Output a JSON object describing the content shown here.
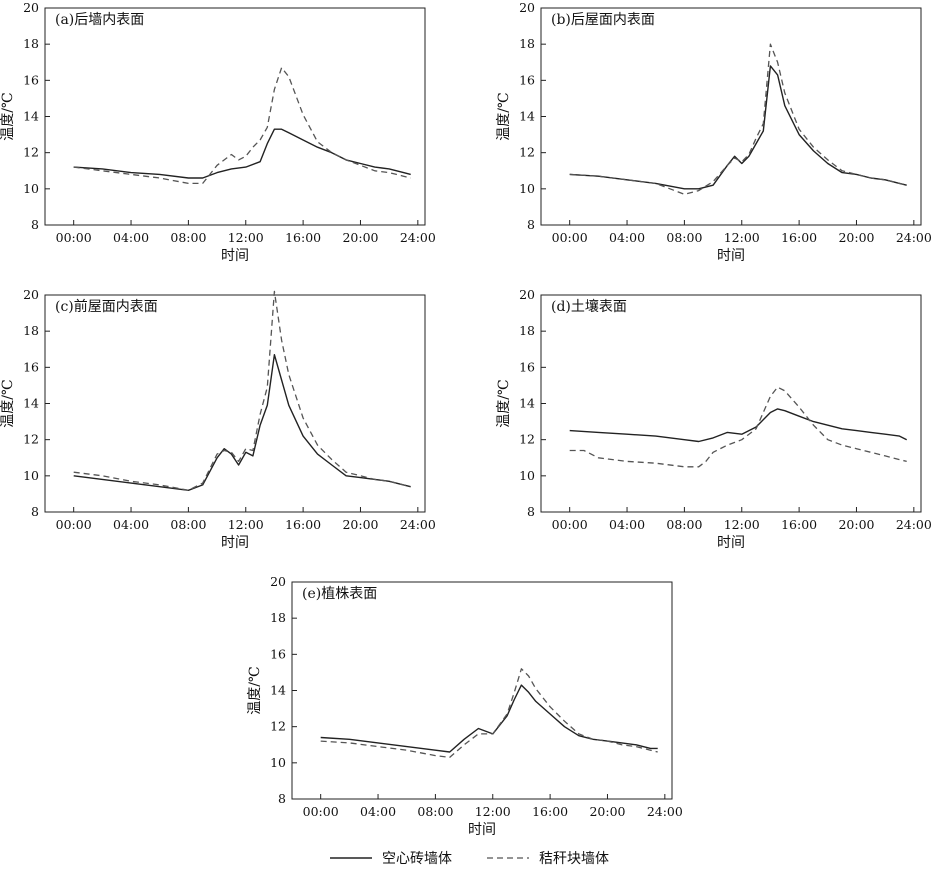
{
  "legend": {
    "solid_label": "空心砖墙体",
    "dashed_label": "秸秆块墙体"
  },
  "chart_data": [
    {
      "type": "line",
      "title": "(a)后墙内表面",
      "xlabel": "时间",
      "ylabel": "温度/℃",
      "x_ticks": [
        "00:00",
        "04:00",
        "08:00",
        "12:00",
        "16:00",
        "20:00",
        "24:00"
      ],
      "y_ticks": [
        "8",
        "10",
        "12",
        "14",
        "16",
        "18",
        "20"
      ],
      "xlim": [
        -2,
        24.5
      ],
      "ylim": [
        8,
        20
      ],
      "series": [
        {
          "name": "空心砖墙体",
          "style": "solid",
          "x": [
            0,
            2,
            4,
            6,
            8,
            9,
            10,
            11,
            12,
            13,
            13.5,
            14,
            14.5,
            15,
            16,
            17,
            18,
            19,
            20,
            21,
            22,
            23,
            23.5
          ],
          "y": [
            11.2,
            11.1,
            10.9,
            10.8,
            10.6,
            10.6,
            10.9,
            11.1,
            11.2,
            11.5,
            12.5,
            13.3,
            13.3,
            13.1,
            12.7,
            12.3,
            12,
            11.6,
            11.4,
            11.2,
            11.1,
            10.9,
            10.8
          ]
        },
        {
          "name": "秸秆块墙体",
          "style": "dashed",
          "x": [
            0,
            2,
            4,
            6,
            8,
            9,
            10,
            11,
            11.5,
            12,
            12.5,
            13,
            13.5,
            14,
            14.5,
            15,
            16,
            17,
            18,
            19,
            20,
            21,
            22,
            23,
            23.5
          ],
          "y": [
            11.2,
            11,
            10.8,
            10.6,
            10.3,
            10.3,
            11.3,
            11.9,
            11.6,
            11.8,
            12.3,
            12.7,
            13.4,
            15.5,
            16.7,
            16.2,
            14.1,
            12.6,
            12,
            11.6,
            11.3,
            11,
            10.9,
            10.7,
            10.6
          ]
        }
      ]
    },
    {
      "type": "line",
      "title": "(b)后屋面内表面",
      "xlabel": "时间",
      "ylabel": "温度/℃",
      "x_ticks": [
        "00:00",
        "04:00",
        "08:00",
        "12:00",
        "16:00",
        "20:00",
        "24:00"
      ],
      "y_ticks": [
        "8",
        "10",
        "12",
        "14",
        "16",
        "18",
        "20"
      ],
      "xlim": [
        -2,
        24.5
      ],
      "ylim": [
        8,
        20
      ],
      "series": [
        {
          "name": "空心砖墙体",
          "style": "solid",
          "x": [
            0,
            2,
            4,
            6,
            8,
            9,
            10,
            11,
            11.5,
            12,
            12.5,
            13,
            13.5,
            14,
            14.5,
            15,
            16,
            17,
            18,
            19,
            20,
            21,
            22,
            23,
            23.5
          ],
          "y": [
            10.8,
            10.7,
            10.5,
            10.3,
            10,
            10,
            10.2,
            11.3,
            11.8,
            11.4,
            11.8,
            12.5,
            13.2,
            16.8,
            16.3,
            14.6,
            13,
            12.1,
            11.4,
            10.9,
            10.8,
            10.6,
            10.5,
            10.3,
            10.2
          ]
        },
        {
          "name": "秸秆块墙体",
          "style": "dashed",
          "x": [
            0,
            2,
            4,
            6,
            8,
            9,
            10,
            11,
            11.5,
            12,
            12.5,
            13,
            13.5,
            14,
            14.5,
            15,
            16,
            17,
            18,
            19,
            20,
            21,
            22,
            23,
            23.5
          ],
          "y": [
            10.8,
            10.7,
            10.5,
            10.3,
            9.7,
            9.9,
            10.4,
            11.3,
            11.7,
            11.5,
            11.9,
            12.8,
            13.6,
            18,
            17,
            15.3,
            13.3,
            12.3,
            11.6,
            11,
            10.8,
            10.6,
            10.5,
            10.3,
            10.2
          ]
        }
      ]
    },
    {
      "type": "line",
      "title": "(c)前屋面内表面",
      "xlabel": "时间",
      "ylabel": "温度/℃",
      "x_ticks": [
        "00:00",
        "04:00",
        "08:00",
        "12:00",
        "16:00",
        "20:00",
        "24:00"
      ],
      "y_ticks": [
        "8",
        "10",
        "12",
        "14",
        "16",
        "18",
        "20"
      ],
      "xlim": [
        -2,
        24.5
      ],
      "ylim": [
        8,
        20
      ],
      "series": [
        {
          "name": "空心砖墙体",
          "style": "solid",
          "x": [
            0,
            2,
            4,
            6,
            8,
            9,
            10,
            10.5,
            11,
            11.5,
            12,
            12.5,
            13,
            13.5,
            14,
            14.5,
            15,
            16,
            17,
            18,
            19,
            20,
            21,
            22,
            23,
            23.5
          ],
          "y": [
            10,
            9.8,
            9.6,
            9.4,
            9.2,
            9.5,
            11,
            11.5,
            11.2,
            10.6,
            11.3,
            11.1,
            12.8,
            13.9,
            16.7,
            15.3,
            13.9,
            12.2,
            11.2,
            10.6,
            10,
            9.9,
            9.8,
            9.7,
            9.5,
            9.4
          ]
        },
        {
          "name": "秸秆块墙体",
          "style": "dashed",
          "x": [
            0,
            2,
            4,
            6,
            8,
            9,
            10,
            10.5,
            11,
            11.5,
            12,
            12.5,
            13,
            13.5,
            14,
            14.5,
            15,
            16,
            17,
            18,
            19,
            20,
            21,
            22,
            23,
            23.5
          ],
          "y": [
            10.2,
            10,
            9.7,
            9.5,
            9.2,
            9.6,
            11.2,
            11.4,
            11.3,
            10.8,
            11.5,
            11.4,
            13.4,
            14.9,
            20.2,
            17.5,
            15.6,
            13.2,
            11.7,
            10.9,
            10.2,
            10,
            9.8,
            9.7,
            9.5,
            9.4
          ]
        }
      ]
    },
    {
      "type": "line",
      "title": "(d)土壤表面",
      "xlabel": "时间",
      "ylabel": "温度/℃",
      "x_ticks": [
        "00:00",
        "04:00",
        "08:00",
        "12:00",
        "16:00",
        "20:00",
        "24:00"
      ],
      "y_ticks": [
        "8",
        "10",
        "12",
        "14",
        "16",
        "18",
        "20"
      ],
      "xlim": [
        -2,
        24.5
      ],
      "ylim": [
        8,
        20
      ],
      "series": [
        {
          "name": "空心砖墙体",
          "style": "solid",
          "x": [
            0,
            2,
            4,
            6,
            8,
            9,
            10,
            11,
            12,
            13,
            14,
            14.5,
            15,
            16,
            17,
            18,
            19,
            20,
            21,
            22,
            23,
            23.5
          ],
          "y": [
            12.5,
            12.4,
            12.3,
            12.2,
            12,
            11.9,
            12.1,
            12.4,
            12.3,
            12.7,
            13.5,
            13.7,
            13.6,
            13.3,
            13,
            12.8,
            12.6,
            12.5,
            12.4,
            12.3,
            12.2,
            12
          ]
        },
        {
          "name": "秸秆块墙体",
          "style": "dashed",
          "x": [
            0,
            1,
            2,
            4,
            6,
            8,
            9,
            9.5,
            10,
            11,
            12,
            13,
            14,
            14.5,
            15,
            16,
            17,
            18,
            19,
            20,
            21,
            22,
            23,
            23.5
          ],
          "y": [
            11.4,
            11.4,
            11,
            10.8,
            10.7,
            10.5,
            10.5,
            10.8,
            11.3,
            11.7,
            12,
            12.6,
            14.4,
            14.9,
            14.7,
            13.8,
            12.8,
            12,
            11.7,
            11.5,
            11.3,
            11.1,
            10.9,
            10.8
          ]
        }
      ]
    },
    {
      "type": "line",
      "title": "(e)植株表面",
      "xlabel": "时间",
      "ylabel": "温度/℃",
      "x_ticks": [
        "00:00",
        "04:00",
        "08:00",
        "12:00",
        "16:00",
        "20:00",
        "24:00"
      ],
      "y_ticks": [
        "8",
        "10",
        "12",
        "14",
        "16",
        "18",
        "20"
      ],
      "xlim": [
        -2,
        24.5
      ],
      "ylim": [
        8,
        20
      ],
      "series": [
        {
          "name": "空心砖墙体",
          "style": "solid",
          "x": [
            0,
            2,
            4,
            6,
            8,
            9,
            10,
            11,
            12,
            13,
            13.5,
            14,
            14.5,
            15,
            16,
            17,
            18,
            19,
            20,
            21,
            22,
            23,
            23.5
          ],
          "y": [
            11.4,
            11.3,
            11.1,
            10.9,
            10.7,
            10.6,
            11.3,
            11.9,
            11.6,
            12.6,
            13.5,
            14.3,
            13.9,
            13.4,
            12.7,
            12,
            11.5,
            11.3,
            11.2,
            11.1,
            11,
            10.8,
            10.8
          ]
        },
        {
          "name": "秸秆块墙体",
          "style": "dashed",
          "x": [
            0,
            2,
            4,
            6,
            8,
            9,
            10,
            11,
            12,
            13,
            13.5,
            14,
            14.5,
            15,
            16,
            17,
            18,
            19,
            20,
            21,
            22,
            23,
            23.5
          ],
          "y": [
            11.2,
            11.1,
            10.9,
            10.7,
            10.4,
            10.3,
            11,
            11.6,
            11.6,
            12.7,
            13.9,
            15.2,
            14.8,
            14.1,
            13.1,
            12.3,
            11.6,
            11.3,
            11.2,
            11,
            10.9,
            10.7,
            10.6
          ]
        }
      ]
    }
  ]
}
